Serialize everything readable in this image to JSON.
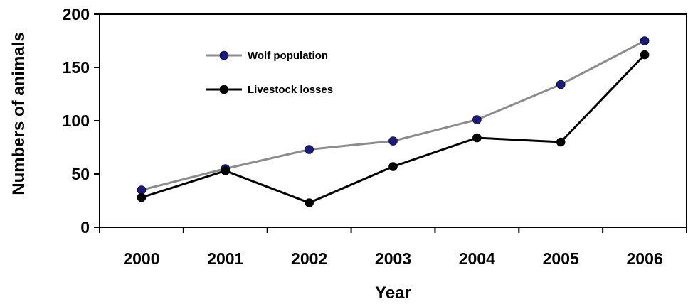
{
  "chart_data": {
    "type": "line",
    "title": "",
    "xlabel": "Year",
    "ylabel": "Numbers of animals",
    "categories": [
      "2000",
      "2001",
      "2002",
      "2003",
      "2004",
      "2005",
      "2006"
    ],
    "ylim": [
      0,
      200
    ],
    "yticks": [
      0,
      50,
      100,
      150,
      200
    ],
    "grid": false,
    "legend_position": "top-left",
    "series": [
      {
        "name": "Wolf population",
        "values": [
          35,
          55,
          73,
          81,
          101,
          134,
          175
        ],
        "line_color": "#8c8c8c",
        "marker_color": "#1a1a80"
      },
      {
        "name": "Livestock losses",
        "values": [
          28,
          53,
          23,
          57,
          84,
          80,
          162
        ],
        "line_color": "#000000",
        "marker_color": "#000000"
      }
    ]
  }
}
